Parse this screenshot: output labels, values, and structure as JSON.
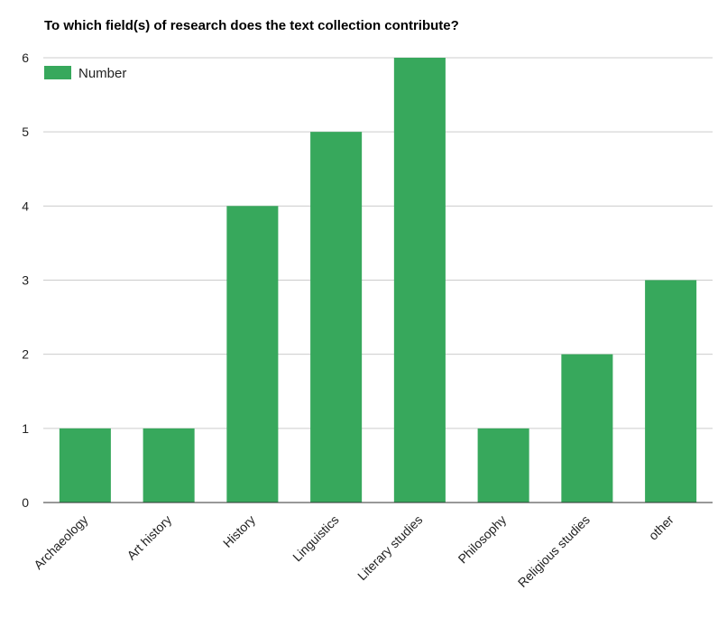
{
  "chart_data": {
    "type": "bar",
    "title": "To which field(s) of research does the text collection contribute?",
    "categories": [
      "Archaeology",
      "Art history",
      "History",
      "Linguistics",
      "Literary studies",
      "Philosophy",
      "Religious studies",
      "other"
    ],
    "series": [
      {
        "name": "Number",
        "values": [
          1,
          1,
          4,
          5,
          6,
          1,
          2,
          3
        ]
      }
    ],
    "ylim": [
      0,
      6
    ],
    "yticks": [
      "0",
      "1",
      "2",
      "3",
      "4",
      "5",
      "6"
    ],
    "xlabel": "",
    "ylabel": "",
    "grid": true,
    "legend_position": "top-left",
    "colors": {
      "bar": "#37a85c",
      "grid": "#cccccc",
      "baseline": "#333333"
    }
  }
}
